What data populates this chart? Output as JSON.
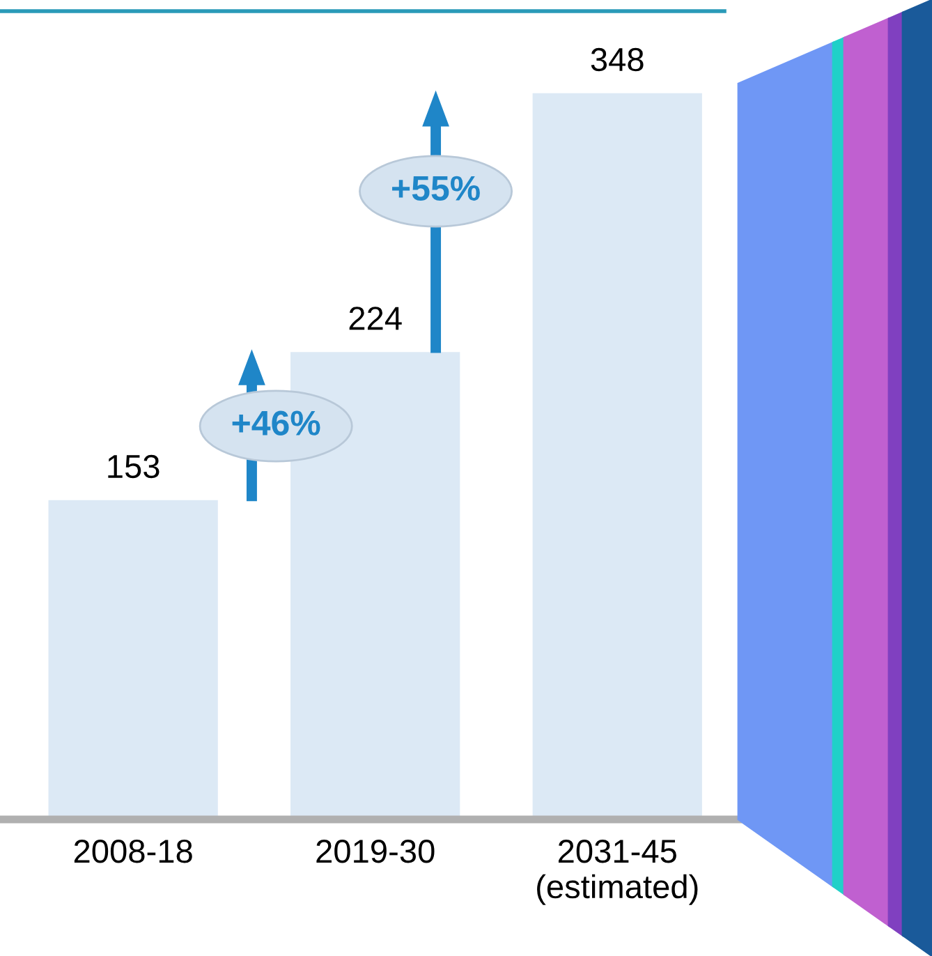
{
  "chart_data": {
    "type": "bar",
    "categories": [
      "2008-18",
      "2019-30",
      "2031-45\n(estimated)"
    ],
    "values": [
      153,
      224,
      348
    ],
    "color": "#dce9f5",
    "ylim": [
      0,
      386
    ],
    "data_labels": true,
    "annotations": [
      "+46%",
      "+55%"
    ],
    "grid": false,
    "legend": false
  }
}
